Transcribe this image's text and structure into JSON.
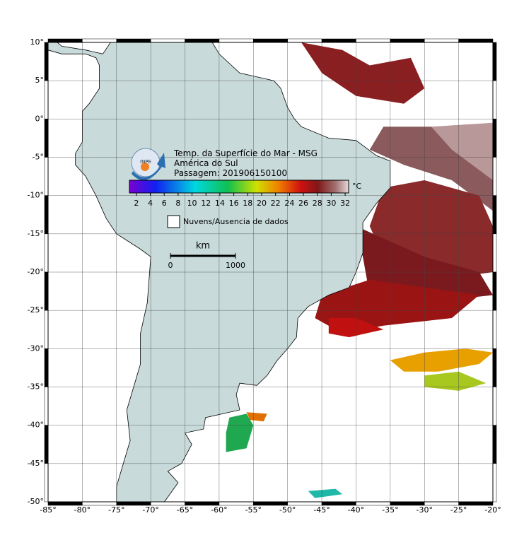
{
  "map": {
    "xlim": [
      -85,
      -20
    ],
    "ylim": [
      -50,
      10
    ],
    "xticks": [
      {
        "value": -85,
        "label": "-85°"
      },
      {
        "value": -80,
        "label": "-80°"
      },
      {
        "value": -75,
        "label": "-75°"
      },
      {
        "value": -70,
        "label": "-70°"
      },
      {
        "value": -65,
        "label": "-65°"
      },
      {
        "value": -60,
        "label": "-60°"
      },
      {
        "value": -55,
        "label": "-55°"
      },
      {
        "value": -50,
        "label": "-50°"
      },
      {
        "value": -45,
        "label": "-45°"
      },
      {
        "value": -40,
        "label": "-40°"
      },
      {
        "value": -35,
        "label": "-35°"
      },
      {
        "value": -30,
        "label": "-30°"
      },
      {
        "value": -25,
        "label": "-25°"
      },
      {
        "value": -20,
        "label": "-20°"
      }
    ],
    "yticks": [
      {
        "value": 10,
        "label": "10°"
      },
      {
        "value": 5,
        "label": "5°"
      },
      {
        "value": 0,
        "label": "0°"
      },
      {
        "value": -5,
        "label": "-5°"
      },
      {
        "value": -10,
        "label": "-10°"
      },
      {
        "value": -15,
        "label": "-15°"
      },
      {
        "value": -20,
        "label": "-20°"
      },
      {
        "value": -25,
        "label": "-25°"
      },
      {
        "value": -30,
        "label": "-30°"
      },
      {
        "value": -35,
        "label": "-35°"
      },
      {
        "value": -40,
        "label": "-40°"
      },
      {
        "value": -45,
        "label": "-45°"
      },
      {
        "value": -50,
        "label": "-50°"
      }
    ]
  },
  "logo": "INPE",
  "title_lines": [
    "Temp. da Superfície do Mar - MSG",
    "América do Sul",
    "Passagem: 201906150100"
  ],
  "colorbar": {
    "unit": "°C",
    "lim": [
      1,
      32.5
    ],
    "ticks": [
      2,
      4,
      6,
      8,
      10,
      12,
      14,
      16,
      18,
      20,
      22,
      24,
      26,
      28,
      30,
      32
    ]
  },
  "legend": "Nuvens/Ausencia de dados",
  "scale": {
    "unit": "km",
    "ticks": [
      0,
      1000
    ]
  }
}
